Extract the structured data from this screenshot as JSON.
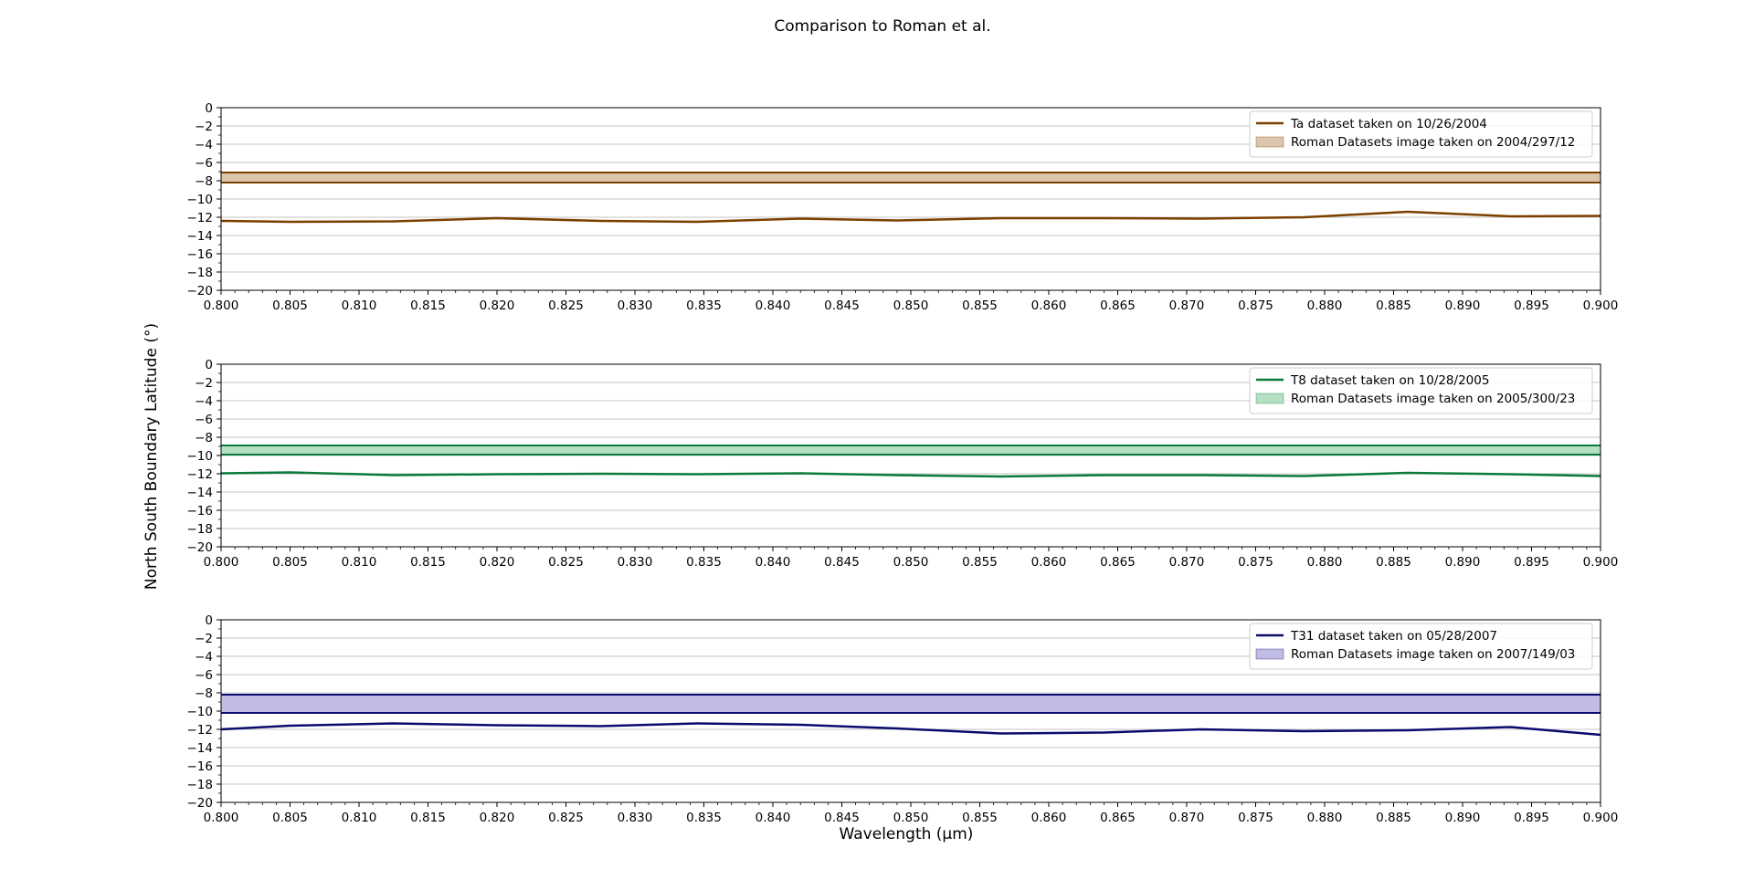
{
  "figure": {
    "title": "Comparison to Roman et al.",
    "xlabel": "Wavelength (µm)",
    "ylabel": "North South Boundary Latitude (°)"
  },
  "chart_data": [
    {
      "type": "line",
      "xlim": [
        0.8,
        0.9
      ],
      "ylim": [
        -20,
        0
      ],
      "grid": "horizontal",
      "legend_position": "upper-right",
      "x_ticks": [
        "0.800",
        "0.805",
        "0.810",
        "0.815",
        "0.820",
        "0.825",
        "0.830",
        "0.835",
        "0.840",
        "0.845",
        "0.850",
        "0.855",
        "0.860",
        "0.865",
        "0.870",
        "0.875",
        "0.880",
        "0.885",
        "0.890",
        "0.895",
        "0.900"
      ],
      "y_ticks": [
        "0",
        "-2",
        "-4",
        "-6",
        "-8",
        "-10",
        "-12",
        "-14",
        "-16",
        "-18",
        "-20"
      ],
      "series": [
        {
          "name": "Ta dataset taken on 10/26/2004",
          "color": "#7b3f00",
          "x": [
            0.8,
            0.805,
            0.8125,
            0.82,
            0.8275,
            0.8345,
            0.842,
            0.849,
            0.8565,
            0.864,
            0.871,
            0.8785,
            0.886,
            0.8935,
            0.9
          ],
          "y": [
            -12.4,
            -12.5,
            -12.45,
            -12.1,
            -12.4,
            -12.5,
            -12.15,
            -12.35,
            -12.1,
            -12.1,
            -12.15,
            -12.0,
            -11.4,
            -11.9,
            -11.85
          ]
        }
      ],
      "band": {
        "name": "Roman Datasets image taken on 2004/297/12",
        "y_range": [
          -8.2,
          -7.1
        ],
        "fill": "#dcc5ad",
        "edge": "#7b3f00"
      }
    },
    {
      "type": "line",
      "xlim": [
        0.8,
        0.9
      ],
      "ylim": [
        -20,
        0
      ],
      "grid": "horizontal",
      "legend_position": "upper-right",
      "x_ticks": [
        "0.800",
        "0.805",
        "0.810",
        "0.815",
        "0.820",
        "0.825",
        "0.830",
        "0.835",
        "0.840",
        "0.845",
        "0.850",
        "0.855",
        "0.860",
        "0.865",
        "0.870",
        "0.875",
        "0.880",
        "0.885",
        "0.890",
        "0.895",
        "0.900"
      ],
      "y_ticks": [
        "0",
        "-2",
        "-4",
        "-6",
        "-8",
        "-10",
        "-12",
        "-14",
        "-16",
        "-18",
        "-20"
      ],
      "series": [
        {
          "name": "T8 dataset taken on 10/28/2005",
          "color": "#0a7a3c",
          "x": [
            0.8,
            0.805,
            0.8125,
            0.82,
            0.8275,
            0.8345,
            0.842,
            0.849,
            0.8565,
            0.864,
            0.871,
            0.8785,
            0.886,
            0.8935,
            0.9
          ],
          "y": [
            -11.95,
            -11.85,
            -12.15,
            -12.05,
            -12.0,
            -12.05,
            -11.95,
            -12.15,
            -12.3,
            -12.15,
            -12.15,
            -12.25,
            -11.9,
            -12.05,
            -12.25
          ]
        }
      ],
      "band": {
        "name": "Roman Datasets image taken on 2005/300/23",
        "y_range": [
          -9.9,
          -8.9
        ],
        "fill": "#b4dfc3",
        "edge": "#0a7a3c"
      }
    },
    {
      "type": "line",
      "xlim": [
        0.8,
        0.9
      ],
      "ylim": [
        -20,
        0
      ],
      "grid": "horizontal",
      "legend_position": "upper-right",
      "x_ticks": [
        "0.800",
        "0.805",
        "0.810",
        "0.815",
        "0.820",
        "0.825",
        "0.830",
        "0.835",
        "0.840",
        "0.845",
        "0.850",
        "0.855",
        "0.860",
        "0.865",
        "0.870",
        "0.875",
        "0.880",
        "0.885",
        "0.890",
        "0.895",
        "0.900"
      ],
      "y_ticks": [
        "0",
        "-2",
        "-4",
        "-6",
        "-8",
        "-10",
        "-12",
        "-14",
        "-16",
        "-18",
        "-20"
      ],
      "series": [
        {
          "name": "T31 dataset taken on 05/28/2007",
          "color": "#0b0b6e",
          "x": [
            0.8,
            0.805,
            0.8125,
            0.82,
            0.8275,
            0.8345,
            0.842,
            0.849,
            0.8565,
            0.864,
            0.871,
            0.8785,
            0.886,
            0.8935,
            0.9
          ],
          "y": [
            -12.0,
            -11.6,
            -11.35,
            -11.55,
            -11.65,
            -11.35,
            -11.5,
            -11.9,
            -12.45,
            -12.35,
            -12.0,
            -12.2,
            -12.1,
            -11.75,
            -12.6
          ]
        }
      ],
      "band": {
        "name": "Roman Datasets image taken on 2007/149/03",
        "y_range": [
          -10.2,
          -8.2
        ],
        "fill": "#c1bce3",
        "edge": "#0b0b6e"
      }
    }
  ]
}
